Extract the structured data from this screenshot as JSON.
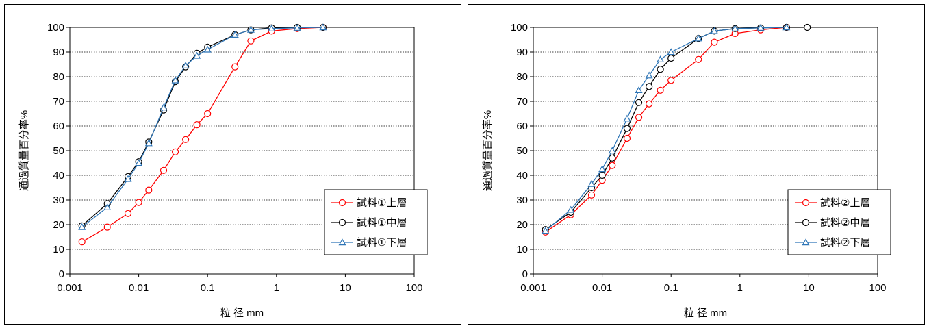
{
  "chart_data": [
    {
      "type": "scatter",
      "title": "",
      "xlabel": "粒 径 mm",
      "ylabel": "通過質量百分率%",
      "xscale": "log",
      "xlim": [
        0.001,
        100
      ],
      "ylim": [
        0,
        100
      ],
      "xticks": [
        "0.001",
        "0.01",
        "0.1",
        "1",
        "10",
        "100"
      ],
      "yticks": [
        "0",
        "10",
        "20",
        "30",
        "40",
        "50",
        "60",
        "70",
        "80",
        "90",
        "100"
      ],
      "grid": "horizontal dotted",
      "legend_position": "bottom-right",
      "series": [
        {
          "name": "試料①上層",
          "color": "#ff0000",
          "marker": "circle",
          "x": [
            0.0015,
            0.0035,
            0.007,
            0.01,
            0.014,
            0.023,
            0.034,
            0.048,
            0.07,
            0.1,
            0.25,
            0.425,
            0.85,
            2,
            4.75
          ],
          "y": [
            13,
            19,
            24.5,
            29,
            34,
            42,
            49.5,
            54.5,
            60.5,
            65,
            84,
            94.5,
            98.5,
            99.5,
            100
          ]
        },
        {
          "name": "試料①中層",
          "color": "#000000",
          "marker": "circle",
          "x": [
            0.0015,
            0.0035,
            0.007,
            0.01,
            0.014,
            0.023,
            0.034,
            0.048,
            0.07,
            0.1,
            0.25,
            0.425,
            0.85,
            2,
            4.75
          ],
          "y": [
            19.5,
            28.5,
            39.5,
            45.5,
            53.5,
            66.5,
            78,
            84,
            89.5,
            92,
            97,
            99,
            99.8,
            100,
            100
          ]
        },
        {
          "name": "試料①下層",
          "color": "#2e75b6",
          "marker": "triangle",
          "x": [
            0.0015,
            0.0035,
            0.007,
            0.01,
            0.014,
            0.023,
            0.034,
            0.048,
            0.07,
            0.1,
            0.25,
            0.425,
            0.85,
            2,
            4.75
          ],
          "y": [
            19,
            27,
            38.5,
            45,
            53,
            67.5,
            78.5,
            84.5,
            88.5,
            91,
            97,
            99,
            99.5,
            99.8,
            100
          ]
        }
      ]
    },
    {
      "type": "scatter",
      "title": "",
      "xlabel": "粒 径 mm",
      "ylabel": "通過質量百分率%",
      "xscale": "log",
      "xlim": [
        0.001,
        100
      ],
      "ylim": [
        0,
        100
      ],
      "xticks": [
        "0.001",
        "0.01",
        "0.1",
        "1",
        "10",
        "100"
      ],
      "yticks": [
        "0",
        "10",
        "20",
        "30",
        "40",
        "50",
        "60",
        "70",
        "80",
        "90",
        "100"
      ],
      "grid": "horizontal dotted",
      "legend_position": "bottom-right",
      "series": [
        {
          "name": "試料②上層",
          "color": "#ff0000",
          "marker": "circle",
          "x": [
            0.0015,
            0.0035,
            0.007,
            0.01,
            0.014,
            0.023,
            0.034,
            0.048,
            0.07,
            0.1,
            0.25,
            0.425,
            0.85,
            2,
            4.75
          ],
          "y": [
            17,
            24,
            32,
            38,
            44,
            55,
            63.5,
            69,
            74.5,
            78.5,
            87,
            94,
            97.5,
            99,
            100
          ]
        },
        {
          "name": "試料②中層",
          "color": "#000000",
          "marker": "circle",
          "x": [
            0.0015,
            0.0035,
            0.007,
            0.01,
            0.014,
            0.023,
            0.034,
            0.048,
            0.07,
            0.1,
            0.25,
            0.425,
            0.85,
            2,
            4.75,
            9.5
          ],
          "y": [
            18,
            25,
            35,
            40,
            47,
            59,
            69.5,
            76,
            83,
            87.5,
            95.5,
            98.5,
            99.5,
            99.8,
            100,
            100
          ]
        },
        {
          "name": "試料②下層",
          "color": "#2e75b6",
          "marker": "triangle",
          "x": [
            0.0015,
            0.0035,
            0.007,
            0.01,
            0.014,
            0.023,
            0.034,
            0.048,
            0.07,
            0.1,
            0.25,
            0.425,
            0.85,
            2,
            4.75
          ],
          "y": [
            17.5,
            26,
            36.5,
            42.5,
            50,
            63,
            74.5,
            80.5,
            87,
            90,
            95.5,
            98.5,
            99.5,
            99.8,
            100
          ]
        }
      ]
    }
  ]
}
